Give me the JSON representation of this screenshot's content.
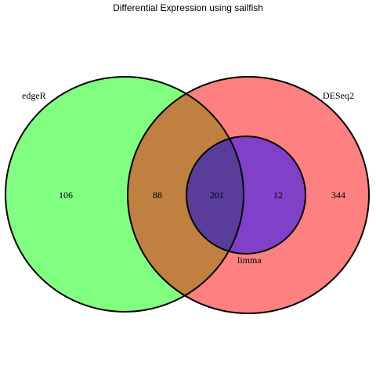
{
  "title": "Differential Expression using sailfish",
  "sets": {
    "edgeR": {
      "label": "edgeR",
      "color": "#80ff80"
    },
    "DESeq2": {
      "label": "DESeq2",
      "color": "#ff8080"
    },
    "limma": {
      "label": "limma",
      "color": "#8040c8"
    }
  },
  "overlap_colors": {
    "edgeR_DESeq2": "#c0803f",
    "all_three": "#5a3c9a"
  },
  "regions": {
    "edgeR_only": "106",
    "edgeR_DESeq2": "88",
    "all_three": "201",
    "DESeq2_limma": "12",
    "DESeq2_only": "344"
  }
}
